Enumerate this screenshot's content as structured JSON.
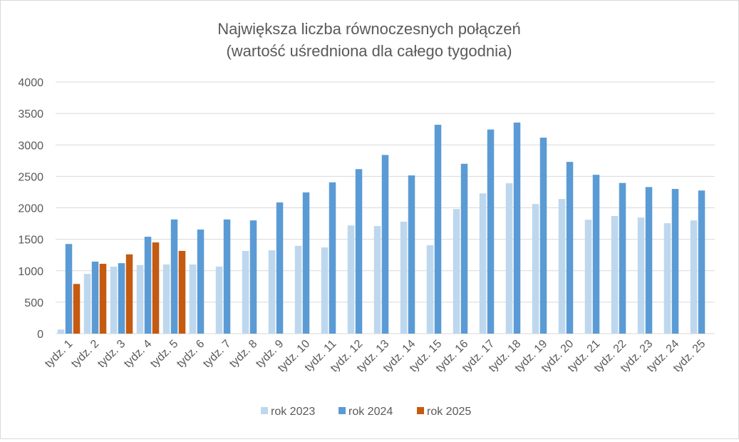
{
  "chart_data": {
    "type": "bar",
    "title": [
      "Największa liczba równoczesnych połączeń",
      "(wartość uśredniona dla całego tygodnia)"
    ],
    "xlabel": "",
    "ylabel": "",
    "ylim": [
      0,
      4000
    ],
    "yticks": [
      0,
      500,
      1000,
      1500,
      2000,
      2500,
      3000,
      3500,
      4000
    ],
    "grid": true,
    "legend_position": "bottom",
    "categories": [
      "tydz. 1",
      "tydz. 2",
      "tydz. 3",
      "tydz. 4",
      "tydz. 5",
      "tydz. 6",
      "tydz. 7",
      "tydz. 8",
      "tydz. 9",
      "tydz. 10",
      "tydz. 11",
      "tydz. 12",
      "tydz. 13",
      "tydz. 14",
      "tydz. 15",
      "tydz. 16",
      "tydz. 17",
      "tydz. 18",
      "tydz. 19",
      "tydz. 20",
      "tydz. 21",
      "tydz. 22",
      "tydz. 23",
      "tydz. 24",
      "tydz. 25"
    ],
    "series": [
      {
        "name": "rok 2023",
        "color": "#bdd7ee",
        "values": [
          65,
          950,
          1065,
          1090,
          1100,
          1100,
          1065,
          1315,
          1325,
          1395,
          1370,
          1720,
          1710,
          1780,
          1405,
          1980,
          2230,
          2390,
          2060,
          2140,
          1810,
          1870,
          1845,
          1755,
          1800
        ]
      },
      {
        "name": "rok 2024",
        "color": "#5b9bd5",
        "values": [
          1425,
          1145,
          1120,
          1540,
          1815,
          1655,
          1815,
          1800,
          2085,
          2245,
          2405,
          2615,
          2840,
          2515,
          3320,
          2700,
          3245,
          3355,
          3115,
          2730,
          2525,
          2395,
          2330,
          2300,
          2275
        ]
      },
      {
        "name": "rok 2025",
        "color": "#c55a11",
        "values": [
          790,
          1110,
          1260,
          1450,
          1315,
          null,
          null,
          null,
          null,
          null,
          null,
          null,
          null,
          null,
          null,
          null,
          null,
          null,
          null,
          null,
          null,
          null,
          null,
          null,
          null
        ]
      }
    ]
  }
}
